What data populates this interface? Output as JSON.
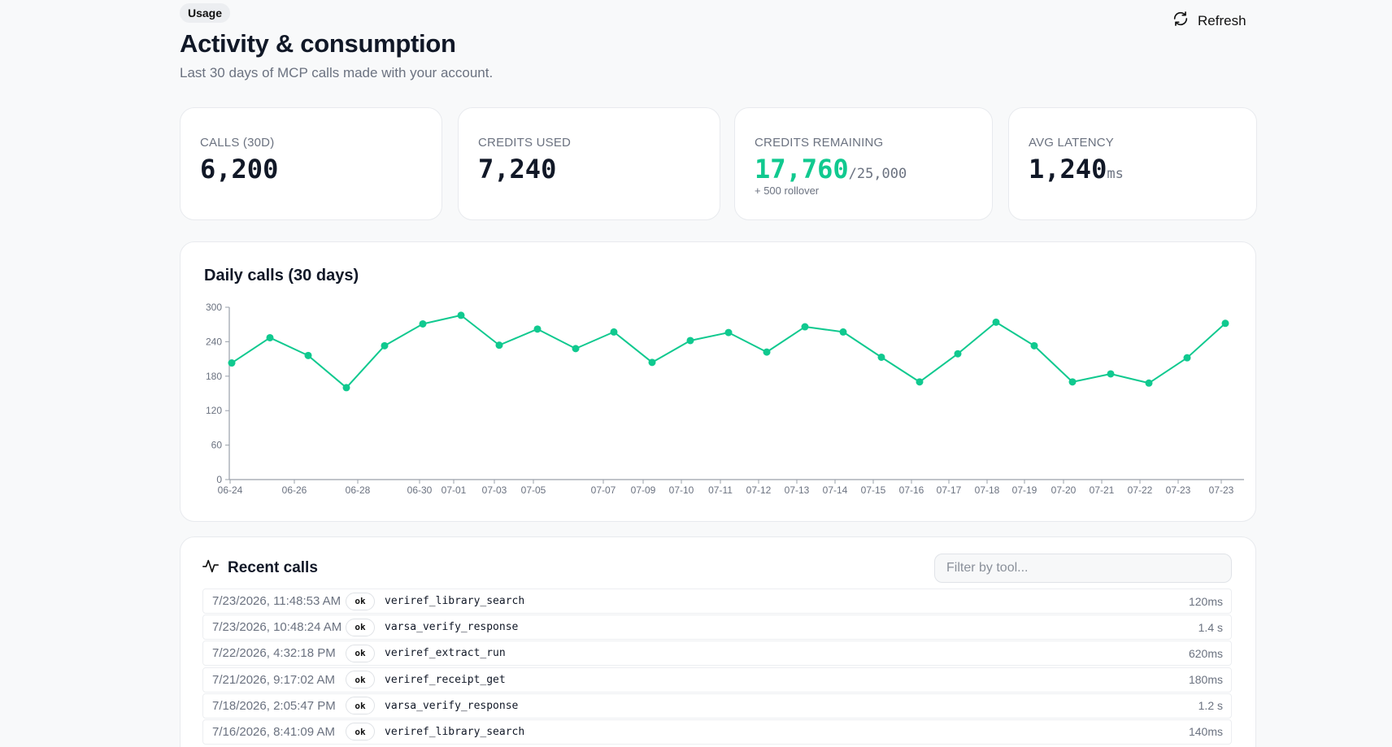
{
  "header": {
    "badge": "Usage",
    "title": "Activity & consumption",
    "subtitle": "Last 30 days of MCP calls made with your account.",
    "refresh_label": "Refresh"
  },
  "stats": [
    {
      "label": "CALLS (30D)",
      "value": "6,200",
      "suffix": "",
      "note": ""
    },
    {
      "label": "CREDITS USED",
      "value": "7,240",
      "suffix": "",
      "note": ""
    },
    {
      "label": "CREDITS REMAINING",
      "value": "17,760",
      "suffix": "/25,000",
      "note": "+ 500 rollover"
    },
    {
      "label": "AVG LATENCY",
      "value": "1,240",
      "suffix": "ms",
      "note": ""
    }
  ],
  "colors": {
    "accent": "#10c98f"
  },
  "chart_data": {
    "type": "line",
    "title": "Daily calls (30 days)",
    "xlabel": "",
    "ylabel": "",
    "ylim": [
      0,
      300
    ],
    "yticks": [
      0,
      60,
      120,
      180,
      240,
      300
    ],
    "x_tick_labels": [
      "06-24",
      "06-26",
      "06-28",
      "06-30",
      "07-01",
      "07-03",
      "07-05",
      "07-07",
      "07-09",
      "07-10",
      "07-11",
      "07-12",
      "07-13",
      "07-14",
      "07-15",
      "07-16",
      "07-17",
      "07-18",
      "07-19",
      "07-20",
      "07-21",
      "07-22",
      "07-23",
      "07-23"
    ],
    "values": [
      203,
      247,
      216,
      160,
      233,
      271,
      286,
      234,
      262,
      228,
      257,
      204,
      242,
      256,
      222,
      266,
      257,
      213,
      170,
      219,
      274,
      233,
      170,
      184,
      168,
      212,
      272
    ],
    "grid": false
  },
  "recent": {
    "title": "Recent calls",
    "filter_placeholder": "Filter by tool...",
    "rows": [
      {
        "time": "7/23/2026, 11:48:53 AM",
        "status": "ok",
        "tool": "veriref_library_search",
        "duration": "120ms"
      },
      {
        "time": "7/23/2026, 10:48:24 AM",
        "status": "ok",
        "tool": "varsa_verify_response",
        "duration": "1.4 s"
      },
      {
        "time": "7/22/2026, 4:32:18 PM",
        "status": "ok",
        "tool": "veriref_extract_run",
        "duration": "620ms"
      },
      {
        "time": "7/21/2026, 9:17:02 AM",
        "status": "ok",
        "tool": "veriref_receipt_get",
        "duration": "180ms"
      },
      {
        "time": "7/18/2026, 2:05:47 PM",
        "status": "ok",
        "tool": "varsa_verify_response",
        "duration": "1.2 s"
      },
      {
        "time": "7/16/2026, 8:41:09 AM",
        "status": "ok",
        "tool": "veriref_library_search",
        "duration": "140ms"
      }
    ]
  }
}
